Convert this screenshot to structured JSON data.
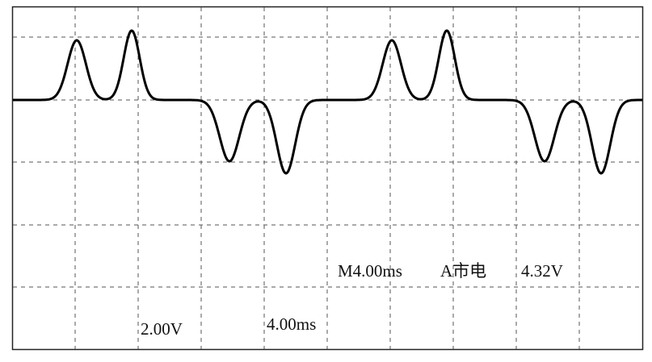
{
  "readouts": {
    "timebase": "M4.00ms",
    "trigger": "A市电",
    "trigger_level": "4.32V",
    "volts_per_div": "2.00V",
    "time_per_div": "4.00ms"
  }
}
